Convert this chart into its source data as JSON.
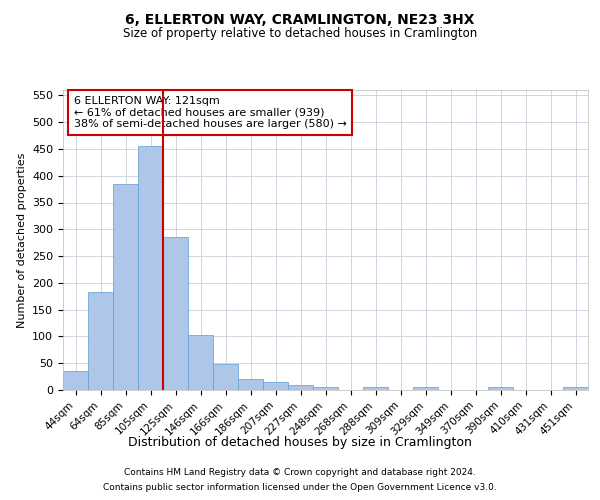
{
  "title1": "6, ELLERTON WAY, CRAMLINGTON, NE23 3HX",
  "title2": "Size of property relative to detached houses in Cramlington",
  "xlabel": "Distribution of detached houses by size in Cramlington",
  "ylabel": "Number of detached properties",
  "categories": [
    "44sqm",
    "64sqm",
    "85sqm",
    "105sqm",
    "125sqm",
    "146sqm",
    "166sqm",
    "186sqm",
    "207sqm",
    "227sqm",
    "248sqm",
    "268sqm",
    "288sqm",
    "309sqm",
    "329sqm",
    "349sqm",
    "370sqm",
    "390sqm",
    "410sqm",
    "431sqm",
    "451sqm"
  ],
  "values": [
    35,
    183,
    385,
    455,
    285,
    103,
    48,
    20,
    15,
    10,
    5,
    0,
    5,
    0,
    5,
    0,
    0,
    5,
    0,
    0,
    5
  ],
  "bar_color": "#aec6e8",
  "bar_edge_color": "#5a9fd4",
  "vline_x_idx": 4,
  "vline_color": "#cc0000",
  "annotation_title": "6 ELLERTON WAY: 121sqm",
  "annotation_line2": "← 61% of detached houses are smaller (939)",
  "annotation_line3": "38% of semi-detached houses are larger (580) →",
  "annotation_box_color": "#cc0000",
  "ylim": [
    0,
    560
  ],
  "yticks": [
    0,
    50,
    100,
    150,
    200,
    250,
    300,
    350,
    400,
    450,
    500,
    550
  ],
  "footer1": "Contains HM Land Registry data © Crown copyright and database right 2024.",
  "footer2": "Contains public sector information licensed under the Open Government Licence v3.0.",
  "bg_color": "#ffffff",
  "grid_color": "#c8d0dc"
}
